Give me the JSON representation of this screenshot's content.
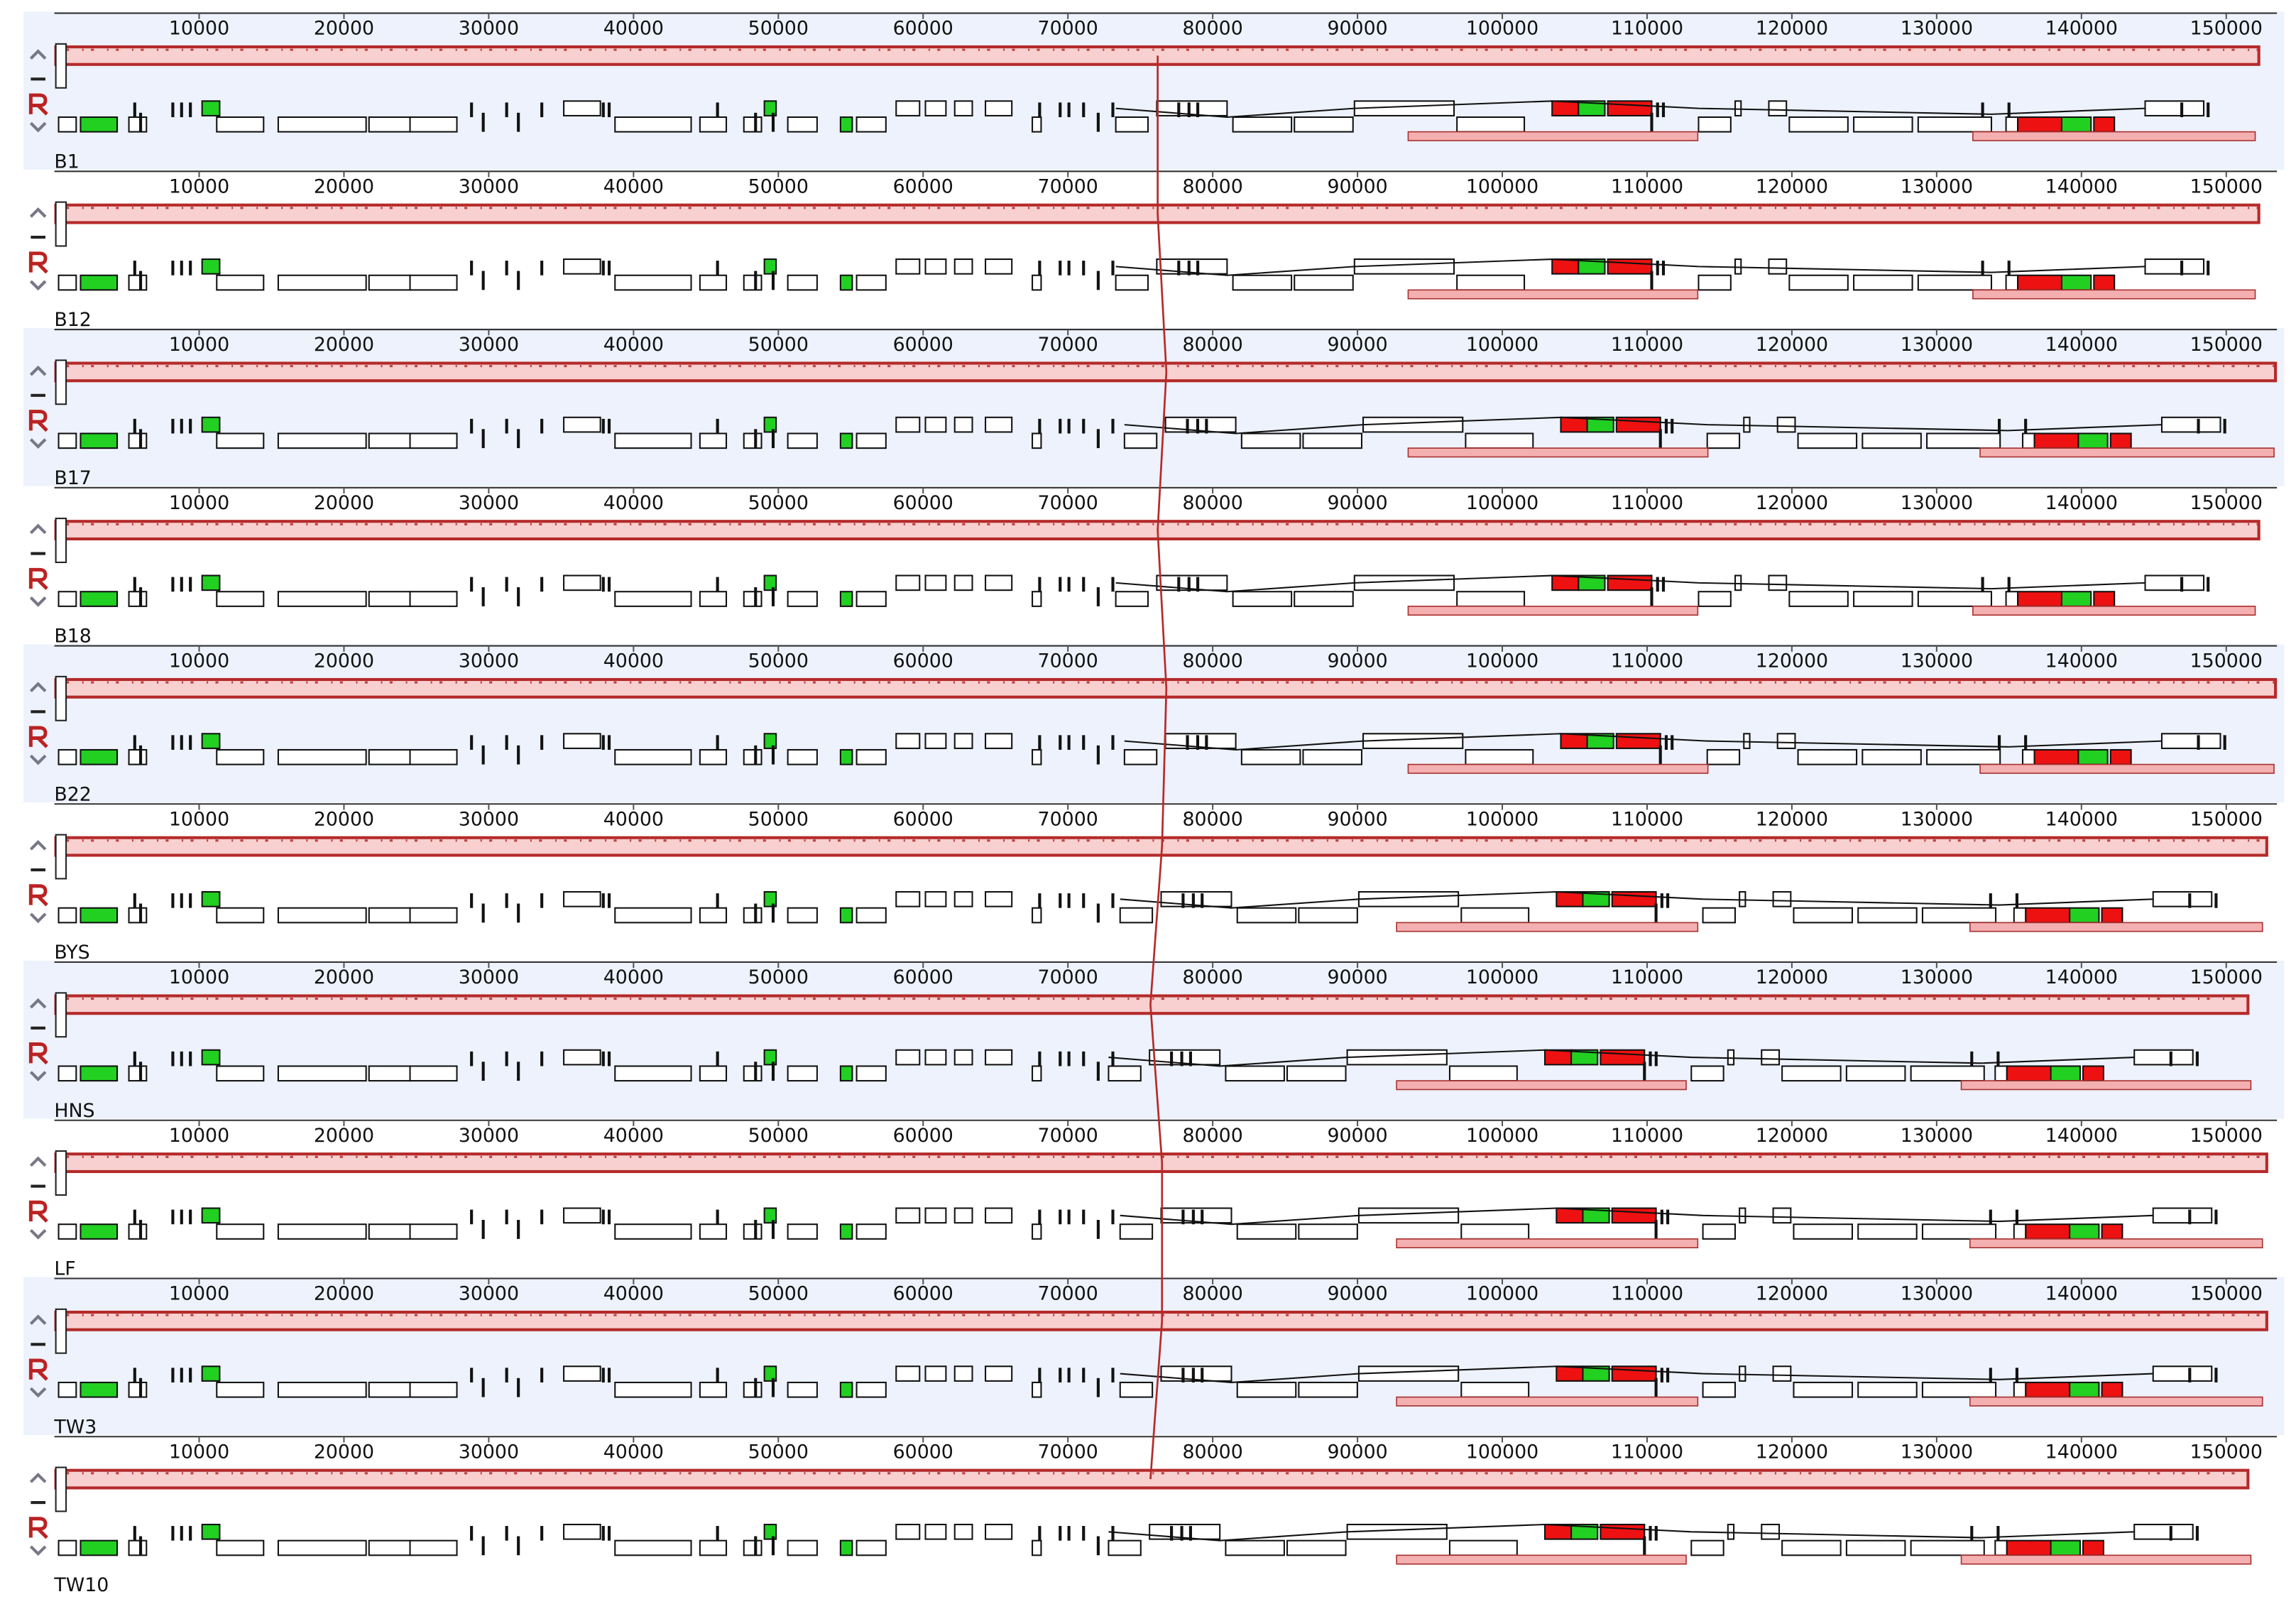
{
  "chart_data": {
    "type": "genome-alignment",
    "xlim": [
      0,
      153500
    ],
    "xticks": [
      10000,
      20000,
      30000,
      40000,
      50000,
      60000,
      70000,
      80000,
      90000,
      100000,
      110000,
      120000,
      130000,
      140000,
      150000
    ],
    "genomes": [
      {
        "name": "B1",
        "length": 152250,
        "boundary": 76200,
        "features": [
          [
            93500,
            113500
          ],
          [
            132500,
            152000
          ]
        ]
      },
      {
        "name": "B12",
        "length": 152250,
        "boundary": 76200,
        "features": [
          [
            93500,
            113500
          ],
          [
            132500,
            152000
          ]
        ]
      },
      {
        "name": "B17",
        "length": 153400,
        "boundary": 76800,
        "features": [
          [
            93500,
            114200
          ],
          [
            133000,
            153300
          ]
        ]
      },
      {
        "name": "B18",
        "length": 152250,
        "boundary": 76200,
        "features": [
          [
            93500,
            113500
          ],
          [
            132500,
            152000
          ]
        ]
      },
      {
        "name": "B22",
        "length": 153400,
        "boundary": 76800,
        "features": [
          [
            93500,
            114200
          ],
          [
            133000,
            153300
          ]
        ]
      },
      {
        "name": "BYS",
        "length": 152800,
        "boundary": 76500,
        "features": [
          [
            92700,
            113500
          ],
          [
            132300,
            152500
          ]
        ]
      },
      {
        "name": "HNS",
        "length": 151500,
        "boundary": 75700,
        "features": [
          [
            92700,
            112700
          ],
          [
            131700,
            151700
          ]
        ]
      },
      {
        "name": "LF",
        "length": 152800,
        "boundary": 76500,
        "features": [
          [
            92700,
            113500
          ],
          [
            132300,
            152500
          ]
        ]
      },
      {
        "name": "TW3",
        "length": 152800,
        "boundary": 76500,
        "features": [
          [
            92700,
            113500
          ],
          [
            132300,
            152500
          ]
        ]
      },
      {
        "name": "TW10",
        "length": 151500,
        "boundary": 75700,
        "features": [
          [
            92700,
            112700
          ],
          [
            131700,
            151700
          ]
        ]
      }
    ]
  }
}
